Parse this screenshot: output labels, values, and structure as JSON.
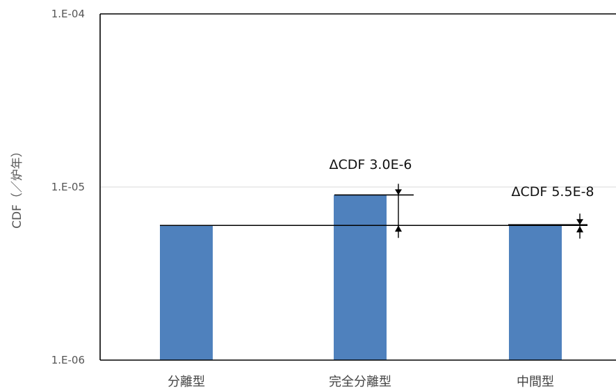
{
  "chart_data": {
    "type": "bar",
    "title": "",
    "xlabel": "",
    "ylabel": "CDF（／炉年）",
    "yscale": "log",
    "ylim": [
      1e-06,
      0.0001
    ],
    "yticks": [
      "1.E-06",
      "1.E-05",
      "1.E-04"
    ],
    "grid": true,
    "categories": [
      "分離型",
      "完全分離型",
      "中間型"
    ],
    "values": [
      6e-06,
      9e-06,
      6.055e-06
    ],
    "bar_color": "#4f81bd",
    "reference_line": {
      "value": 6e-06
    },
    "annotations": [
      {
        "category_index": 1,
        "text": "ΔCDF 3.0E-6"
      },
      {
        "category_index": 2,
        "text": "ΔCDF 5.5E-8"
      }
    ]
  }
}
